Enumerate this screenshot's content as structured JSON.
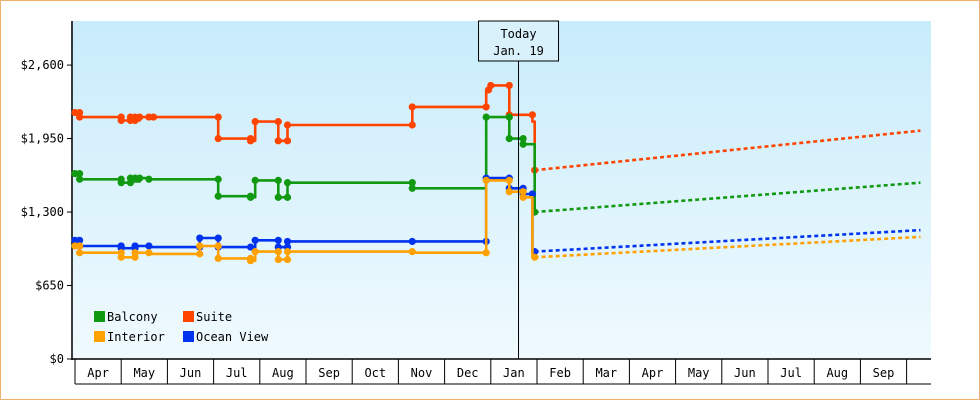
{
  "chart_data": {
    "type": "line",
    "title": "",
    "ylabel": "",
    "xlabel": "",
    "ylim": [
      0,
      2990
    ],
    "yticks": [
      {
        "value": 0,
        "label": "$0"
      },
      {
        "value": 650,
        "label": "$650"
      },
      {
        "value": 1300,
        "label": "$1,300"
      },
      {
        "value": 1950,
        "label": "$1,950"
      },
      {
        "value": 2600,
        "label": "$2,600"
      }
    ],
    "x_unit": "months since Apr 1 (previous year)",
    "xlim": [
      -0.05,
      18.3
    ],
    "months": [
      "Apr",
      "May",
      "Jun",
      "Jul",
      "Aug",
      "Sep",
      "Oct",
      "Nov",
      "Dec",
      "Jan",
      "Feb",
      "Mar",
      "Apr",
      "May",
      "Jun",
      "Jul",
      "Aug",
      "Sep"
    ],
    "today": {
      "label_line1": "Today",
      "label_line2": "Jan. 19",
      "x": 9.6
    },
    "legend": {
      "position": "bottom-left"
    },
    "series": [
      {
        "name": "Suite",
        "color": "#ff4400",
        "points": [
          [
            0,
            2180
          ],
          [
            0.1,
            2180
          ],
          [
            0.1,
            2140
          ],
          [
            0.2,
            2140
          ],
          [
            1.0,
            2140
          ],
          [
            1.0,
            2110
          ],
          [
            1.2,
            2110
          ],
          [
            1.2,
            2140
          ],
          [
            1.3,
            2140
          ],
          [
            1.3,
            2110
          ],
          [
            1.4,
            2110
          ],
          [
            1.4,
            2140
          ],
          [
            1.6,
            2140
          ],
          [
            1.6,
            2140
          ],
          [
            1.7,
            2140
          ],
          [
            1.7,
            2140
          ],
          [
            3.1,
            2140
          ],
          [
            3.1,
            1950
          ],
          [
            3.8,
            1950
          ],
          [
            3.8,
            1930
          ],
          [
            3.9,
            1930
          ],
          [
            3.9,
            2100
          ],
          [
            4.4,
            2100
          ],
          [
            4.4,
            1930
          ],
          [
            4.6,
            1930
          ],
          [
            4.6,
            2070
          ],
          [
            7.3,
            2070
          ],
          [
            7.3,
            2230
          ],
          [
            8.9,
            2230
          ],
          [
            8.9,
            2380
          ],
          [
            9.0,
            2380
          ],
          [
            9.0,
            2420
          ],
          [
            9.4,
            2420
          ],
          [
            9.4,
            2160
          ],
          [
            9.9,
            2160
          ],
          [
            9.9,
            2100
          ],
          [
            9.95,
            2100
          ],
          [
            9.95,
            1670
          ]
        ],
        "forecast": [
          [
            9.95,
            1670
          ],
          [
            18.3,
            2020
          ]
        ],
        "dots": [
          [
            0,
            2180
          ],
          [
            0.1,
            2180
          ],
          [
            0.1,
            2140
          ],
          [
            1.0,
            2140
          ],
          [
            1.0,
            2110
          ],
          [
            1.2,
            2110
          ],
          [
            1.2,
            2140
          ],
          [
            1.3,
            2140
          ],
          [
            1.3,
            2110
          ],
          [
            1.4,
            2140
          ],
          [
            1.6,
            2140
          ],
          [
            1.7,
            2140
          ],
          [
            3.1,
            2140
          ],
          [
            3.1,
            1950
          ],
          [
            3.8,
            1950
          ],
          [
            3.8,
            1930
          ],
          [
            3.9,
            2100
          ],
          [
            4.4,
            2100
          ],
          [
            4.4,
            1930
          ],
          [
            4.6,
            1930
          ],
          [
            4.6,
            2070
          ],
          [
            7.3,
            2070
          ],
          [
            7.3,
            2230
          ],
          [
            8.9,
            2230
          ],
          [
            8.95,
            2380
          ],
          [
            9.0,
            2420
          ],
          [
            9.4,
            2420
          ],
          [
            9.4,
            2160
          ],
          [
            9.9,
            2160
          ],
          [
            9.95,
            1670
          ]
        ]
      },
      {
        "name": "Balcony",
        "color": "#119911",
        "points": [
          [
            0,
            1640
          ],
          [
            0.1,
            1640
          ],
          [
            0.1,
            1590
          ],
          [
            1.0,
            1590
          ],
          [
            1.0,
            1560
          ],
          [
            1.2,
            1560
          ],
          [
            1.2,
            1600
          ],
          [
            1.3,
            1600
          ],
          [
            1.3,
            1570
          ],
          [
            1.4,
            1570
          ],
          [
            1.4,
            1600
          ],
          [
            1.6,
            1600
          ],
          [
            1.6,
            1590
          ],
          [
            3.1,
            1590
          ],
          [
            3.1,
            1440
          ],
          [
            3.8,
            1440
          ],
          [
            3.8,
            1430
          ],
          [
            3.9,
            1430
          ],
          [
            3.9,
            1580
          ],
          [
            4.4,
            1580
          ],
          [
            4.4,
            1430
          ],
          [
            4.6,
            1430
          ],
          [
            4.6,
            1560
          ],
          [
            7.3,
            1560
          ],
          [
            7.3,
            1510
          ],
          [
            8.9,
            1510
          ],
          [
            8.9,
            2140
          ],
          [
            9.4,
            2140
          ],
          [
            9.4,
            1950
          ],
          [
            9.7,
            1950
          ],
          [
            9.7,
            1900
          ],
          [
            9.95,
            1900
          ],
          [
            9.95,
            1300
          ]
        ],
        "forecast": [
          [
            9.95,
            1300
          ],
          [
            18.3,
            1560
          ]
        ],
        "dots": [
          [
            0,
            1640
          ],
          [
            0.1,
            1640
          ],
          [
            0.1,
            1590
          ],
          [
            1.0,
            1590
          ],
          [
            1.0,
            1560
          ],
          [
            1.2,
            1560
          ],
          [
            1.2,
            1600
          ],
          [
            1.3,
            1600
          ],
          [
            1.4,
            1600
          ],
          [
            1.6,
            1590
          ],
          [
            3.1,
            1590
          ],
          [
            3.1,
            1440
          ],
          [
            3.8,
            1440
          ],
          [
            3.8,
            1430
          ],
          [
            3.9,
            1580
          ],
          [
            4.4,
            1580
          ],
          [
            4.4,
            1430
          ],
          [
            4.6,
            1430
          ],
          [
            4.6,
            1560
          ],
          [
            7.3,
            1560
          ],
          [
            7.3,
            1510
          ],
          [
            8.9,
            2140
          ],
          [
            9.4,
            2140
          ],
          [
            9.4,
            1950
          ],
          [
            9.7,
            1950
          ],
          [
            9.7,
            1900
          ],
          [
            9.95,
            1300
          ]
        ]
      },
      {
        "name": "Ocean View",
        "color": "#0033ee",
        "points": [
          [
            0,
            1050
          ],
          [
            0.1,
            1050
          ],
          [
            0.1,
            1000
          ],
          [
            1.0,
            1000
          ],
          [
            1.0,
            980
          ],
          [
            1.3,
            980
          ],
          [
            1.3,
            1000
          ],
          [
            1.6,
            1000
          ],
          [
            1.6,
            990
          ],
          [
            2.7,
            990
          ],
          [
            2.7,
            1070
          ],
          [
            3.1,
            1070
          ],
          [
            3.1,
            990
          ],
          [
            3.8,
            990
          ],
          [
            3.8,
            990
          ],
          [
            3.9,
            990
          ],
          [
            3.9,
            1050
          ],
          [
            4.4,
            1050
          ],
          [
            4.4,
            990
          ],
          [
            4.6,
            990
          ],
          [
            4.6,
            1040
          ],
          [
            7.3,
            1040
          ],
          [
            7.3,
            1040
          ],
          [
            8.9,
            1040
          ],
          [
            8.9,
            1600
          ],
          [
            9.4,
            1600
          ],
          [
            9.4,
            1510
          ],
          [
            9.7,
            1510
          ],
          [
            9.7,
            1460
          ],
          [
            9.9,
            1460
          ],
          [
            9.9,
            950
          ],
          [
            9.95,
            950
          ]
        ],
        "forecast": [
          [
            9.95,
            950
          ],
          [
            18.3,
            1140
          ]
        ],
        "dots": [
          [
            0,
            1050
          ],
          [
            0.1,
            1050
          ],
          [
            0.1,
            1000
          ],
          [
            1.0,
            1000
          ],
          [
            1.0,
            980
          ],
          [
            1.3,
            980
          ],
          [
            1.3,
            1000
          ],
          [
            1.6,
            1000
          ],
          [
            2.7,
            990
          ],
          [
            2.7,
            1070
          ],
          [
            3.1,
            1070
          ],
          [
            3.1,
            990
          ],
          [
            3.8,
            990
          ],
          [
            3.9,
            1050
          ],
          [
            4.4,
            1050
          ],
          [
            4.4,
            990
          ],
          [
            4.6,
            990
          ],
          [
            4.6,
            1040
          ],
          [
            7.3,
            1040
          ],
          [
            8.9,
            1040
          ],
          [
            8.9,
            1600
          ],
          [
            9.4,
            1600
          ],
          [
            9.4,
            1510
          ],
          [
            9.7,
            1510
          ],
          [
            9.7,
            1460
          ],
          [
            9.9,
            1460
          ],
          [
            9.95,
            950
          ]
        ]
      },
      {
        "name": "Interior",
        "color": "#ffa100",
        "points": [
          [
            0,
            1000
          ],
          [
            0.1,
            1000
          ],
          [
            0.1,
            940
          ],
          [
            1.0,
            940
          ],
          [
            1.0,
            900
          ],
          [
            1.3,
            900
          ],
          [
            1.3,
            940
          ],
          [
            1.6,
            940
          ],
          [
            1.6,
            930
          ],
          [
            2.7,
            930
          ],
          [
            2.7,
            1000
          ],
          [
            3.1,
            1000
          ],
          [
            3.1,
            890
          ],
          [
            3.8,
            890
          ],
          [
            3.8,
            870
          ],
          [
            3.9,
            870
          ],
          [
            3.9,
            950
          ],
          [
            4.4,
            950
          ],
          [
            4.4,
            880
          ],
          [
            4.6,
            880
          ],
          [
            4.6,
            950
          ],
          [
            7.3,
            950
          ],
          [
            7.3,
            940
          ],
          [
            8.9,
            940
          ],
          [
            8.9,
            1580
          ],
          [
            9.4,
            1580
          ],
          [
            9.4,
            1480
          ],
          [
            9.7,
            1480
          ],
          [
            9.7,
            1430
          ],
          [
            9.9,
            1430
          ],
          [
            9.9,
            900
          ],
          [
            9.95,
            900
          ]
        ],
        "forecast": [
          [
            9.95,
            900
          ],
          [
            18.3,
            1080
          ]
        ],
        "dots": [
          [
            0,
            1000
          ],
          [
            0.1,
            1000
          ],
          [
            0.1,
            940
          ],
          [
            1.0,
            940
          ],
          [
            1.0,
            900
          ],
          [
            1.3,
            900
          ],
          [
            1.3,
            940
          ],
          [
            1.6,
            940
          ],
          [
            2.7,
            930
          ],
          [
            2.7,
            1000
          ],
          [
            3.1,
            1000
          ],
          [
            3.1,
            890
          ],
          [
            3.8,
            890
          ],
          [
            3.8,
            870
          ],
          [
            3.9,
            950
          ],
          [
            4.4,
            950
          ],
          [
            4.4,
            880
          ],
          [
            4.6,
            880
          ],
          [
            4.6,
            950
          ],
          [
            7.3,
            950
          ],
          [
            8.9,
            940
          ],
          [
            8.9,
            1580
          ],
          [
            9.4,
            1580
          ],
          [
            9.4,
            1480
          ],
          [
            9.7,
            1480
          ],
          [
            9.7,
            1430
          ],
          [
            9.95,
            900
          ]
        ]
      }
    ],
    "legend_order": [
      "Balcony",
      "Suite",
      "Interior",
      "Ocean View"
    ]
  }
}
